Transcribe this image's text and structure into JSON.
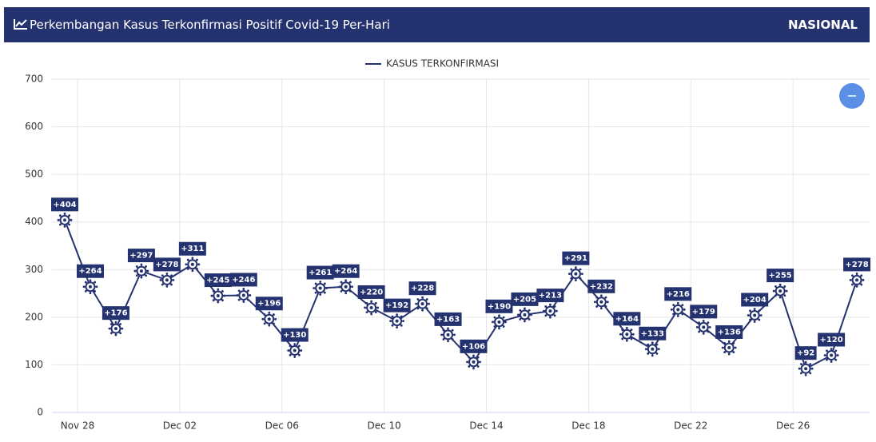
{
  "header": {
    "title": "Perkembangan Kasus Terkonfirmasi Positif Covid-19 Per-Hari",
    "region": "NASIONAL"
  },
  "chart_data": {
    "type": "line",
    "categories": [
      null,
      "Nov 28",
      null,
      null,
      null,
      "Dec 02",
      null,
      null,
      null,
      "Dec 06",
      null,
      null,
      null,
      "Dec 10",
      null,
      null,
      null,
      "Dec 14",
      null,
      null,
      null,
      "Dec 18",
      null,
      null,
      null,
      "Dec 22",
      null,
      null,
      null,
      "Dec 26",
      null,
      null
    ],
    "series": [
      {
        "name": "KASUS TERKONFIRMASI",
        "color": "#253270",
        "values": [
          404,
          264,
          176,
          297,
          278,
          311,
          245,
          246,
          196,
          130,
          261,
          264,
          220,
          192,
          228,
          163,
          106,
          190,
          205,
          213,
          291,
          232,
          164,
          133,
          216,
          179,
          136,
          204,
          255,
          92,
          120,
          278
        ],
        "value_labels": [
          "+404",
          "+264",
          "+176",
          "+297",
          "+278",
          "+311",
          "+245",
          "+246",
          "+196",
          "+130",
          "+261",
          "+264",
          "+220",
          "+192",
          "+228",
          "+163",
          "+106",
          "+190",
          "+205",
          "+213",
          "+291",
          "+232",
          "+164",
          "+133",
          "+216",
          "+179",
          "+136",
          "+204",
          "+255",
          "+92",
          "+120",
          "+278"
        ]
      }
    ],
    "ylim": [
      0,
      700
    ],
    "yticks": [
      0,
      100,
      200,
      300,
      400,
      500,
      600,
      700
    ],
    "grid": true
  }
}
